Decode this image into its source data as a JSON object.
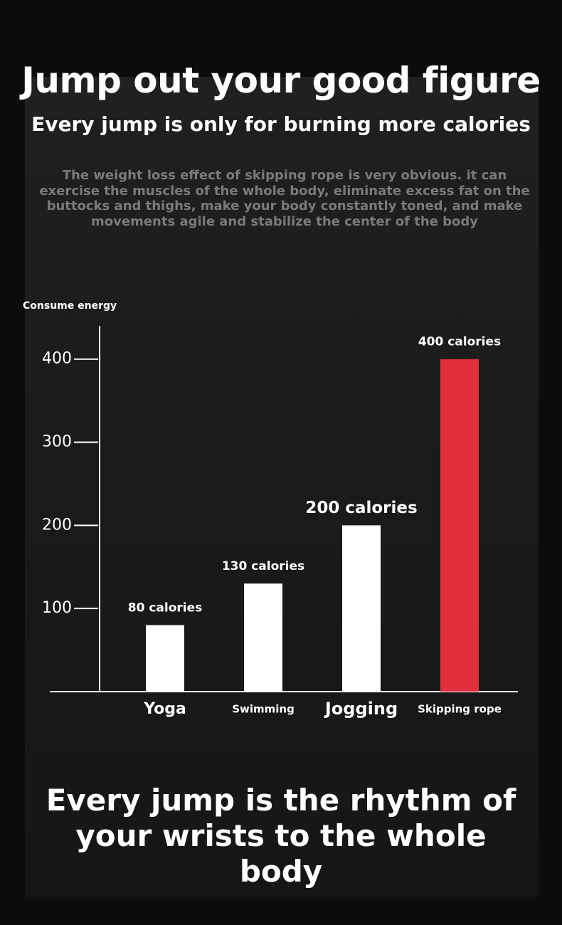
{
  "header": {
    "title": "Jump out your good figure",
    "subtitle": "Every jump is only for burning more calories",
    "description": "The weight loss effect of skipping rope is very obvious. it can exercise the muscles of the whole body, eliminate excess fat on the buttocks and thighs, make your body constantly toned, and make movements agile and stabilize the center of the body"
  },
  "chart_data": {
    "type": "bar",
    "y_label": "Consume energy",
    "categories": [
      "Yoga",
      "Swimming",
      "Jogging",
      "Skipping rope"
    ],
    "values": [
      80,
      130,
      200,
      400
    ],
    "value_labels": [
      "80 calories",
      "130 calories",
      "200 calories",
      "400 calories"
    ],
    "colors": [
      "#ffffff",
      "#ffffff",
      "#ffffff",
      "#e0303c"
    ],
    "ylim": [
      0,
      440
    ],
    "yticks": [
      100,
      200,
      300,
      400
    ]
  },
  "footer": {
    "text": "Every jump is the rhythm of your wrists to the whole body"
  }
}
